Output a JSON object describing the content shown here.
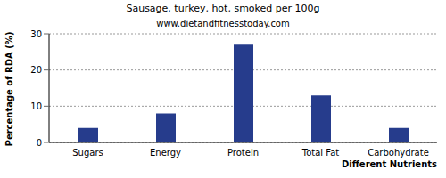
{
  "chart_data": {
    "type": "bar",
    "title": "Sausage, turkey, hot, smoked per 100g",
    "subtitle": "www.dietandfitnesstoday.com",
    "x_label": "Different Nutrients",
    "y_label": "Percentage of RDA (%)",
    "categories": [
      "Sugars",
      "Energy",
      "Protein",
      "Total Fat",
      "Carbohydrate"
    ],
    "values": [
      4,
      8,
      27,
      13,
      4
    ],
    "color": "#263c8c",
    "ylim": [
      0,
      30
    ],
    "yticks": [
      0,
      10,
      20,
      30
    ],
    "grid": true
  }
}
